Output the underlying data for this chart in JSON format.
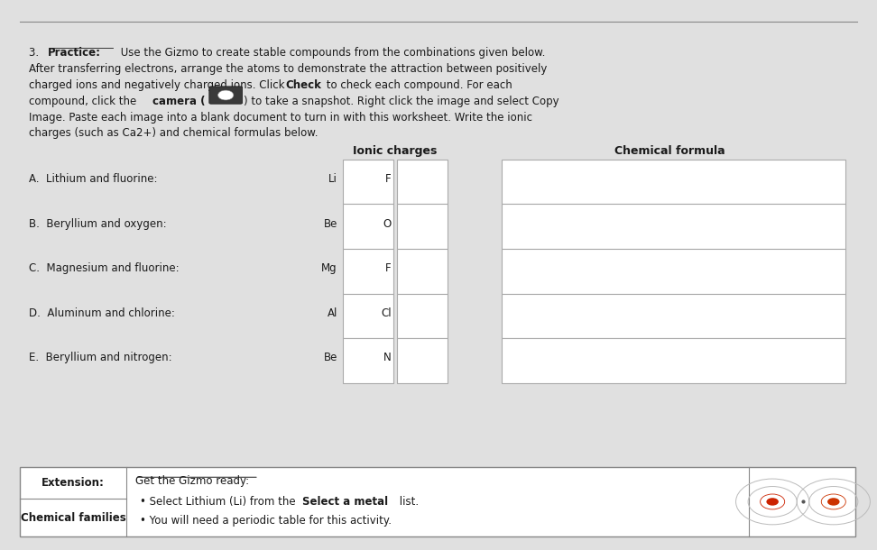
{
  "bg_color": "#e0e0e0",
  "paper_color": "#f2f2f0",
  "ionic_charges_header": "Ionic charges",
  "chemical_formula_header": "Chemical formula",
  "rows": [
    {
      "label": "A.  Lithium and fluorine:",
      "metal": "Li",
      "nonmetal": "F"
    },
    {
      "label": "B.  Beryllium and oxygen:",
      "metal": "Be",
      "nonmetal": "O"
    },
    {
      "label": "C.  Magnesium and fluorine:",
      "metal": "Mg",
      "nonmetal": "F"
    },
    {
      "label": "D.  Aluminum and chlorine:",
      "metal": "Al",
      "nonmetal": "Cl"
    },
    {
      "label": "E.  Beryllium and nitrogen:",
      "metal": "Be",
      "nonmetal": "N"
    }
  ],
  "extension_left1": "Extension:",
  "extension_left2": "Chemical families",
  "extension_title": "Get the Gizmo ready:",
  "extension_bullet1_pre": "• Select Lithium (Li) from the ",
  "extension_bullet1_bold": "Select a metal",
  "extension_bullet1_post": " list.",
  "extension_bullet2": "• You will need a periodic table for this activity.",
  "fs_body": 8.5,
  "fs_header": 9.0
}
